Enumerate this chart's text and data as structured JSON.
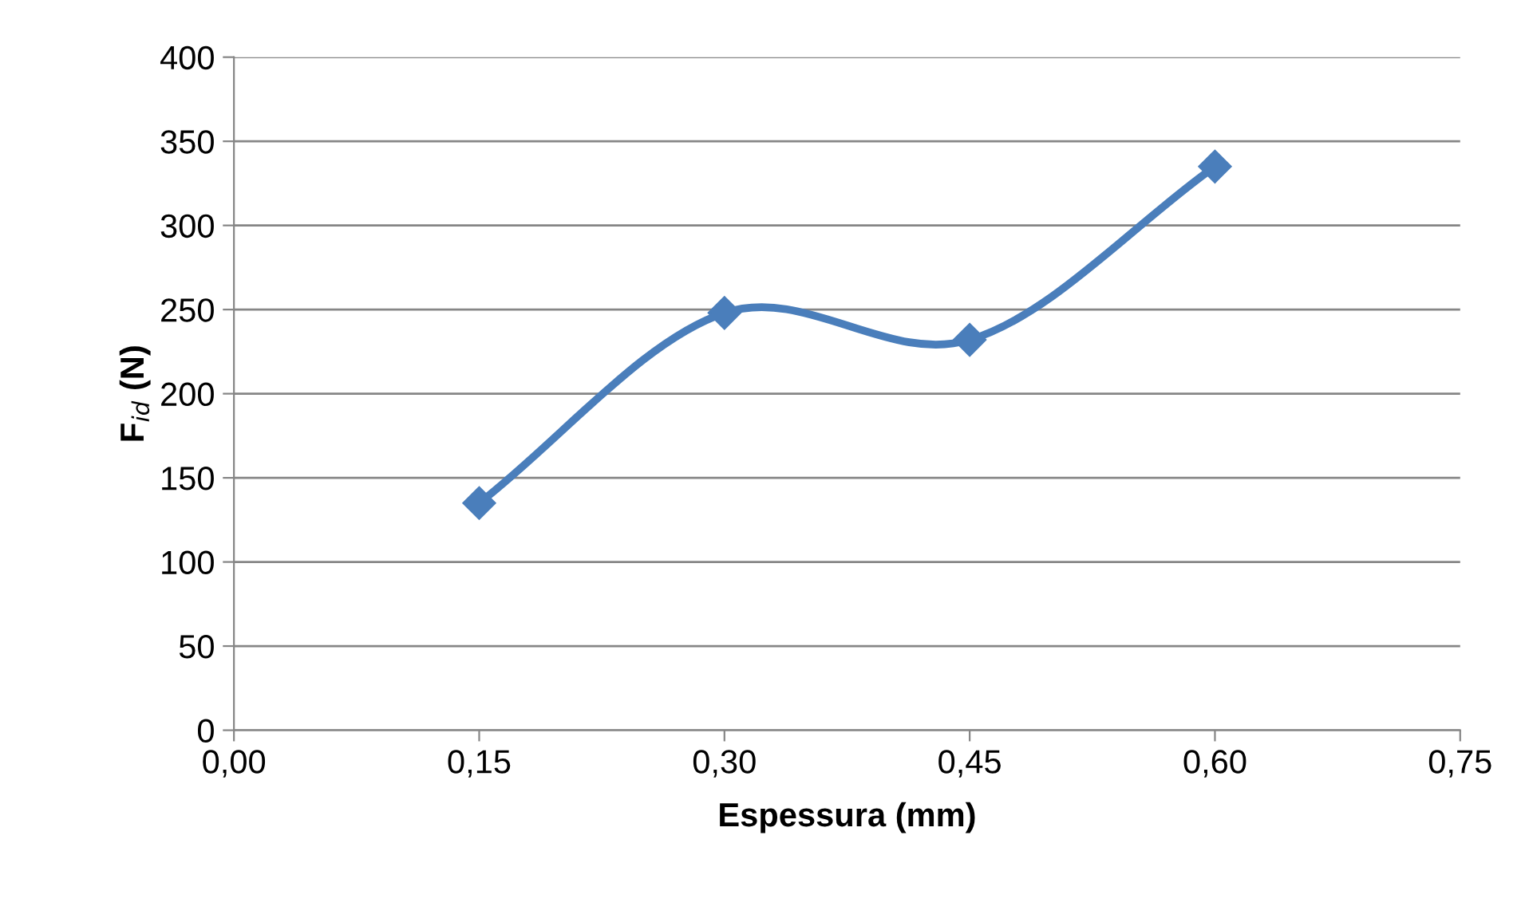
{
  "chart_data": {
    "type": "line",
    "xlabel": "Espessura (mm)",
    "ylabel": "F$_{id}$ (N)",
    "x": [
      0.15,
      0.3,
      0.45,
      0.6
    ],
    "series": [
      {
        "color": "#4a7ebb",
        "values": [
          135,
          248,
          232,
          335
        ]
      }
    ],
    "xlim": [
      0,
      0.75
    ],
    "xticks": [
      {
        "value": 0,
        "label": "0,00"
      },
      {
        "value": 0.15,
        "label": "0,15"
      },
      {
        "value": 0.3,
        "label": "0,30"
      },
      {
        "value": 0.45,
        "label": "0,45"
      },
      {
        "value": 0.6,
        "label": "0,60"
      },
      {
        "value": 0.75,
        "label": "0,75"
      }
    ],
    "ylim": [
      0,
      400
    ],
    "yticks": [
      0,
      50,
      100,
      150,
      200,
      250,
      300,
      350,
      400
    ],
    "grid": "y",
    "marker": "diamond",
    "line_style": "solid"
  }
}
